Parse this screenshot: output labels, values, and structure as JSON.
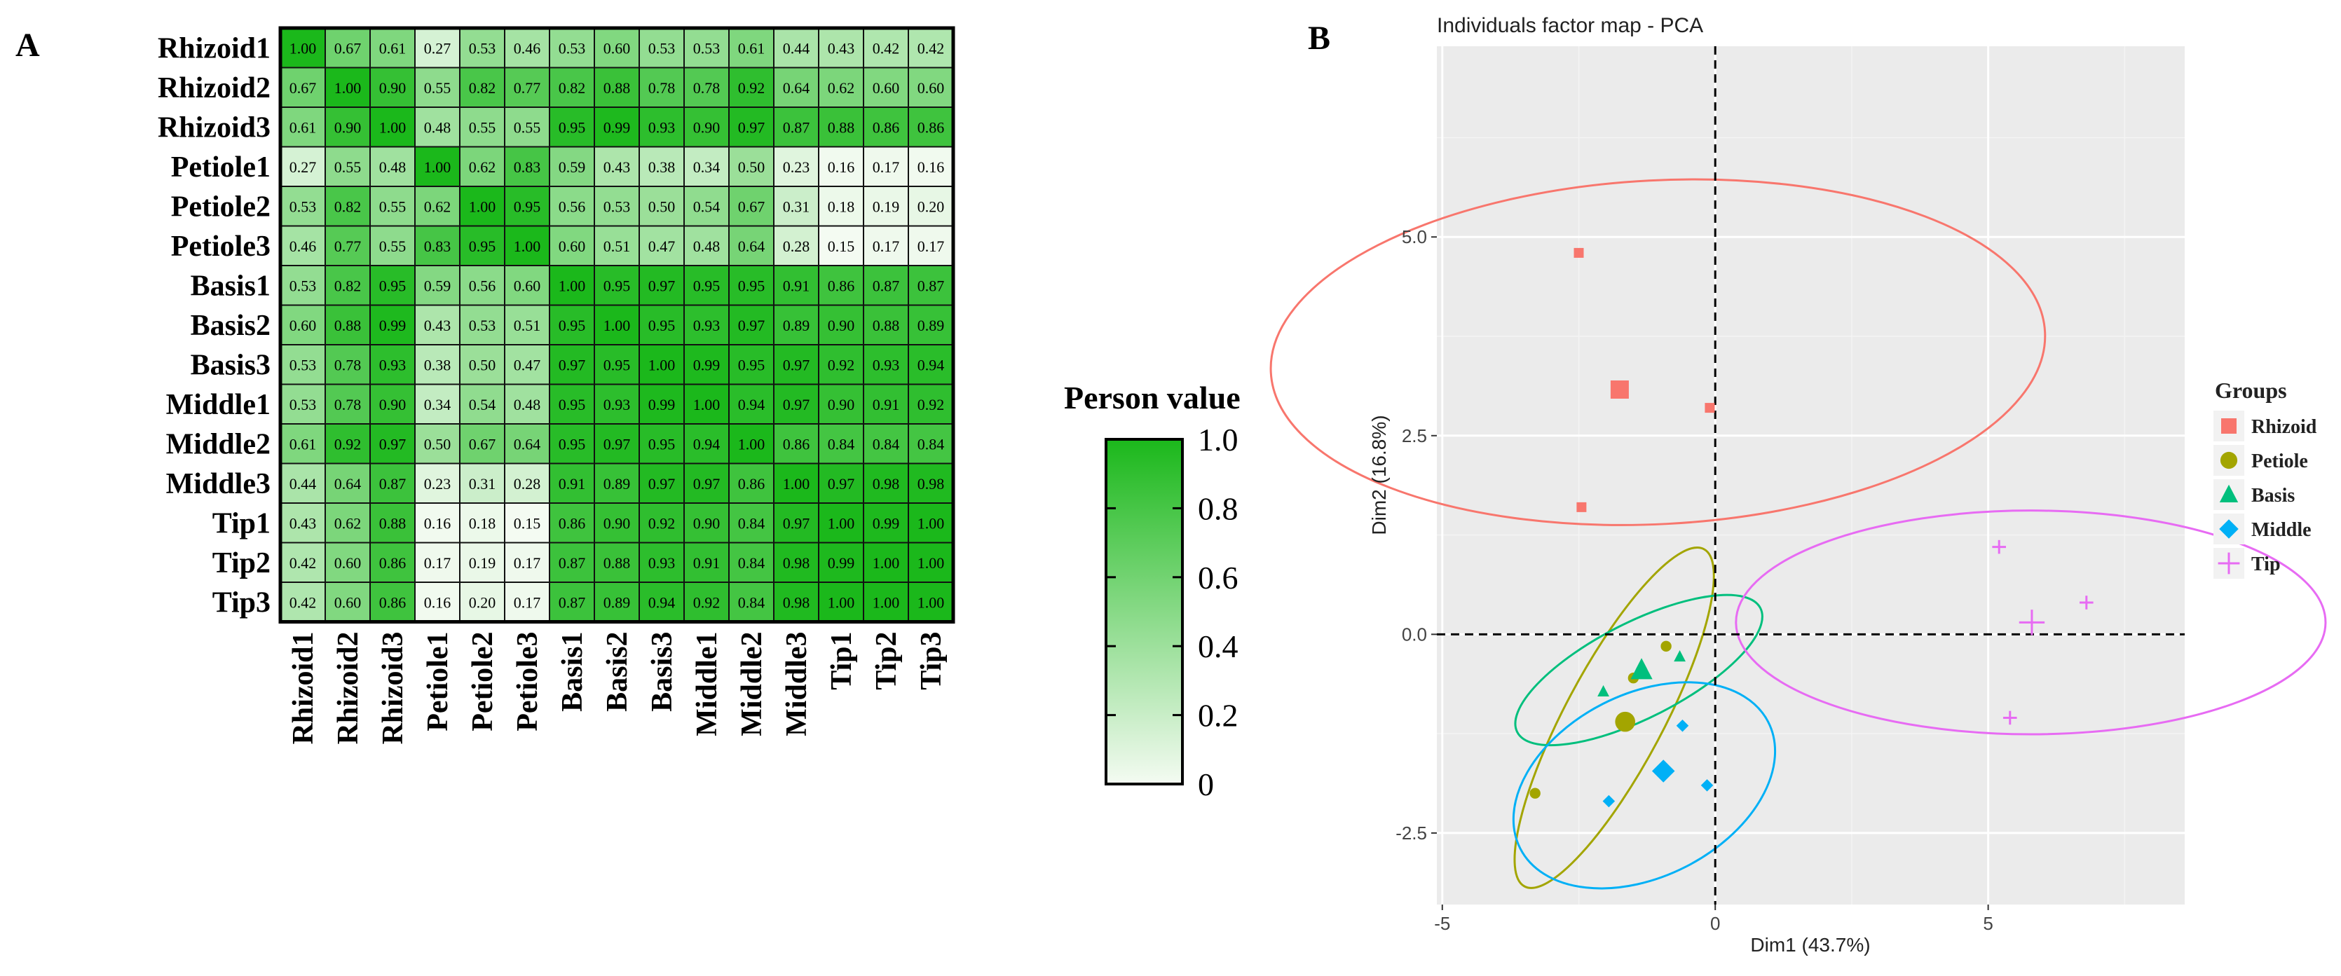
{
  "colors": {
    "heat_low": "#f4fbf2",
    "heat_high": "#1bb81b",
    "panel_bg": "#ebebeb",
    "rhizoid": "#f8766d",
    "petiole": "#a3a500",
    "basis": "#00bf7d",
    "middle": "#00b0f6",
    "tip": "#e76bf3"
  },
  "chart_data": [
    {
      "type": "heatmap",
      "panel_label": "A",
      "row_labels": [
        "Rhizoid1",
        "Rhizoid2",
        "Rhizoid3",
        "Petiole1",
        "Petiole2",
        "Petiole3",
        "Basis1",
        "Basis2",
        "Basis3",
        "Middle1",
        "Middle2",
        "Middle3",
        "Tip1",
        "Tip2",
        "Tip3"
      ],
      "col_labels": [
        "Rhizoid1",
        "Rhizoid2",
        "Rhizoid3",
        "Petiole1",
        "Petiole2",
        "Petiole3",
        "Basis1",
        "Basis2",
        "Basis3",
        "Middle1",
        "Middle2",
        "Middle3",
        "Tip1",
        "Tip2",
        "Tip3"
      ],
      "values": [
        [
          "1.00",
          "0.67",
          "0.61",
          "0.27",
          "0.53",
          "0.46",
          "0.53",
          "0.60",
          "0.53",
          "0.53",
          "0.61",
          "0.44",
          "0.43",
          "0.42",
          "0.42"
        ],
        [
          "0.67",
          "1.00",
          "0.90",
          "0.55",
          "0.82",
          "0.77",
          "0.82",
          "0.88",
          "0.78",
          "0.78",
          "0.92",
          "0.64",
          "0.62",
          "0.60",
          "0.60"
        ],
        [
          "0.61",
          "0.90",
          "1.00",
          "0.48",
          "0.55",
          "0.55",
          "0.95",
          "0.99",
          "0.93",
          "0.90",
          "0.97",
          "0.87",
          "0.88",
          "0.86",
          "0.86"
        ],
        [
          "0.27",
          "0.55",
          "0.48",
          "1.00",
          "0.62",
          "0.83",
          "0.59",
          "0.43",
          "0.38",
          "0.34",
          "0.50",
          "0.23",
          "0.16",
          "0.17",
          "0.16"
        ],
        [
          "0.53",
          "0.82",
          "0.55",
          "0.62",
          "1.00",
          "0.95",
          "0.56",
          "0.53",
          "0.50",
          "0.54",
          "0.67",
          "0.31",
          "0.18",
          "0.19",
          "0.20"
        ],
        [
          "0.46",
          "0.77",
          "0.55",
          "0.83",
          "0.95",
          "1.00",
          "0.60",
          "0.51",
          "0.47",
          "0.48",
          "0.64",
          "0.28",
          "0.15",
          "0.17",
          "0.17"
        ],
        [
          "0.53",
          "0.82",
          "0.95",
          "0.59",
          "0.56",
          "0.60",
          "1.00",
          "0.95",
          "0.97",
          "0.95",
          "0.95",
          "0.91",
          "0.86",
          "0.87",
          "0.87"
        ],
        [
          "0.60",
          "0.88",
          "0.99",
          "0.43",
          "0.53",
          "0.51",
          "0.95",
          "1.00",
          "0.95",
          "0.93",
          "0.97",
          "0.89",
          "0.90",
          "0.88",
          "0.89"
        ],
        [
          "0.53",
          "0.78",
          "0.93",
          "0.38",
          "0.50",
          "0.47",
          "0.97",
          "0.95",
          "1.00",
          "0.99",
          "0.95",
          "0.97",
          "0.92",
          "0.93",
          "0.94"
        ],
        [
          "0.53",
          "0.78",
          "0.90",
          "0.34",
          "0.54",
          "0.48",
          "0.95",
          "0.93",
          "0.99",
          "1.00",
          "0.94",
          "0.97",
          "0.90",
          "0.91",
          "0.92"
        ],
        [
          "0.61",
          "0.92",
          "0.97",
          "0.50",
          "0.67",
          "0.64",
          "0.95",
          "0.97",
          "0.95",
          "0.94",
          "1.00",
          "0.86",
          "0.84",
          "0.84",
          "0.84"
        ],
        [
          "0.44",
          "0.64",
          "0.87",
          "0.23",
          "0.31",
          "0.28",
          "0.91",
          "0.89",
          "0.97",
          "0.97",
          "0.86",
          "1.00",
          "0.97",
          "0.98",
          "0.98"
        ],
        [
          "0.43",
          "0.62",
          "0.88",
          "0.16",
          "0.18",
          "0.15",
          "0.86",
          "0.90",
          "0.92",
          "0.90",
          "0.84",
          "0.97",
          "1.00",
          "0.99",
          "1.00"
        ],
        [
          "0.42",
          "0.60",
          "0.86",
          "0.17",
          "0.19",
          "0.17",
          "0.87",
          "0.88",
          "0.93",
          "0.91",
          "0.84",
          "0.98",
          "0.99",
          "1.00",
          "1.00"
        ],
        [
          "0.42",
          "0.60",
          "0.86",
          "0.16",
          "0.20",
          "0.17",
          "0.87",
          "0.89",
          "0.94",
          "0.92",
          "0.84",
          "0.98",
          "1.00",
          "1.00",
          "1.00"
        ]
      ],
      "colorbar": {
        "title": "Person value",
        "range": [
          0,
          1
        ],
        "ticks": [
          "1.0",
          "0.8",
          "0.6",
          "0.4",
          "0.2",
          "0"
        ]
      }
    },
    {
      "type": "scatter",
      "panel_label": "B",
      "title": "Individuals factor map - PCA",
      "xlabel": "Dim1 (43.7%)",
      "ylabel": "Dim2 (16.8%)",
      "xlim": [
        -5.1,
        8.6
      ],
      "ylim": [
        -3.4,
        7.4
      ],
      "x_ticks": [
        -5,
        0,
        5
      ],
      "x_tick_labels": [
        "-5",
        "0",
        "5"
      ],
      "y_ticks": [
        -2.5,
        0,
        2.5,
        5
      ],
      "y_tick_labels": [
        "-2.5",
        "0.0",
        "2.5",
        "5.0"
      ],
      "grid": true,
      "legend_title": "Groups",
      "legend_position": "right",
      "series": [
        {
          "name": "Rhizoid",
          "marker": "square",
          "points": [
            [
              -2.5,
              4.8
            ],
            [
              -0.1,
              2.85
            ],
            [
              -2.45,
              1.6
            ]
          ],
          "centroid": [
            -1.75,
            3.08
          ],
          "ellipse": {
            "cx": -1.05,
            "cy": 3.55,
            "rx": 3.15,
            "ry": 7.1,
            "angle": -87
          }
        },
        {
          "name": "Petiole",
          "marker": "circle",
          "points": [
            [
              -1.5,
              -0.55
            ],
            [
              -3.3,
              -2.0
            ],
            [
              -0.9,
              -0.15
            ]
          ],
          "centroid": [
            -1.65,
            -1.1
          ],
          "ellipse": {
            "cx": -1.85,
            "cy": -1.05,
            "rx": 3.5,
            "ry": 0.9,
            "angle": 62
          }
        },
        {
          "name": "Basis",
          "marker": "triangle",
          "points": [
            [
              -2.05,
              -0.72
            ],
            [
              -0.65,
              -0.28
            ],
            [
              -1.35,
              -0.38
            ]
          ],
          "centroid": [
            -1.35,
            -0.45
          ],
          "ellipse": {
            "cx": -1.4,
            "cy": -0.45,
            "rx": 2.5,
            "ry": 0.6,
            "angle": 27
          }
        },
        {
          "name": "Middle",
          "marker": "diamond",
          "points": [
            [
              -0.6,
              -1.15
            ],
            [
              -0.15,
              -1.9
            ],
            [
              -1.95,
              -2.1
            ]
          ],
          "centroid": [
            -0.95,
            -1.72
          ],
          "ellipse": {
            "cx": -1.3,
            "cy": -1.9,
            "rx": 2.55,
            "ry": 1.15,
            "angle": 27
          }
        },
        {
          "name": "Tip",
          "marker": "plus",
          "points": [
            [
              5.2,
              1.1
            ],
            [
              6.8,
              0.4
            ],
            [
              5.4,
              -1.05
            ]
          ],
          "centroid": [
            5.8,
            0.15
          ],
          "ellipse": {
            "cx": 5.78,
            "cy": 0.15,
            "rx": 2.05,
            "ry": 5.4,
            "angle": 90
          }
        }
      ]
    }
  ]
}
